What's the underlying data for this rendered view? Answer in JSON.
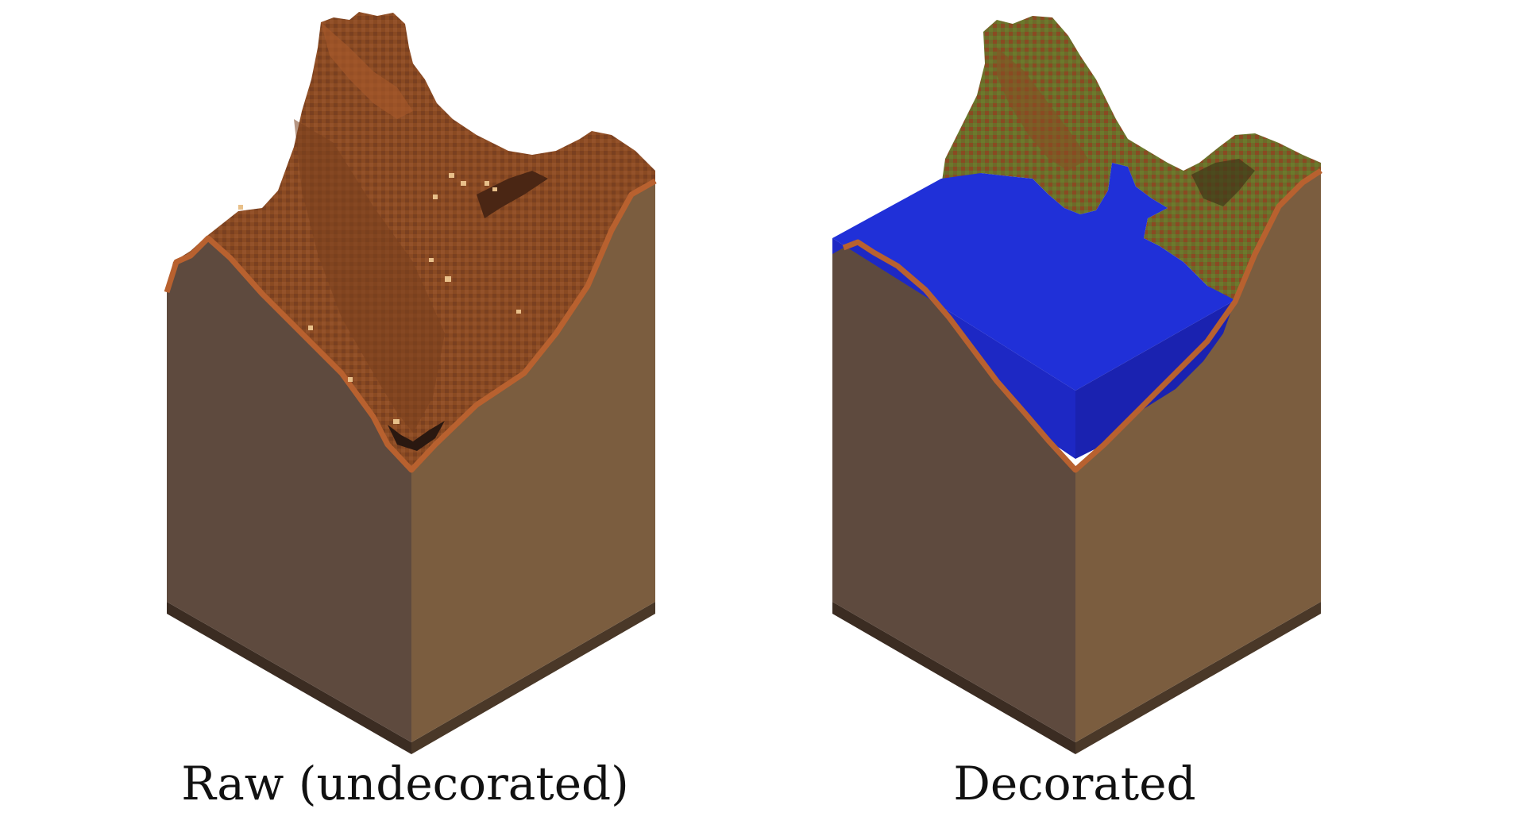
{
  "panels": [
    {
      "id": "raw",
      "caption": "Raw (undecorated)",
      "colors": {
        "left_face": "#5e4a3e",
        "right_face": "#7b5d3f",
        "base_strip": "#3b2c22",
        "terrain_top": "#8a4a22",
        "terrain_shade": "#6f3a1b",
        "terrain_highlight": "#a85a2c",
        "terrain_rim": "#b8612f",
        "sand_speck": "#e8c08a"
      }
    },
    {
      "id": "decorated",
      "caption": "Decorated",
      "colors": {
        "left_face": "#5e4a3e",
        "right_face": "#7b5d3f",
        "base_strip": "#3b2c22",
        "terrain_top": "#7a6a2a",
        "terrain_shade": "#8a4a22",
        "terrain_highlight": "#6b7a2c",
        "terrain_rim": "#b8612f",
        "water_top": "#2030d8",
        "water_side": "#1a22b0",
        "water_front": "#1d28c4"
      }
    }
  ]
}
